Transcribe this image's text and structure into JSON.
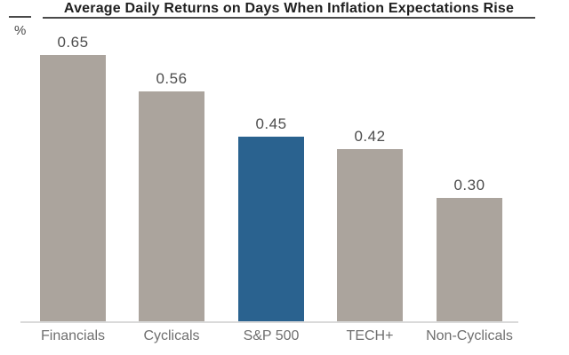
{
  "header": {
    "title": "Average Daily Returns on Days When Inflation Expectations Rise"
  },
  "axes": {
    "y_unit": "%"
  },
  "chart_data": {
    "type": "bar",
    "title": "Average Daily Returns on Days When Inflation Expectations Rise",
    "ylabel": "%",
    "categories": [
      "Financials",
      "Cyclicals",
      "S&P 500",
      "TECH+",
      "Non-Cyclicals"
    ],
    "values": [
      0.65,
      0.56,
      0.45,
      0.42,
      0.3
    ],
    "value_labels": [
      "0.65",
      "0.56",
      "0.45",
      "0.42",
      "0.30"
    ],
    "highlighted_category": "S&P 500",
    "ylim": [
      0,
      0.7
    ],
    "grid": false,
    "legend": false,
    "colors": {
      "bar": "#ABA49D",
      "highlight": "#2A628F",
      "baseline": "#DADADA",
      "value_label": "#4D4D4D",
      "category_label": "#6F6F6F",
      "title": "#1F1F1F",
      "rule": "#4A4A4A"
    }
  }
}
